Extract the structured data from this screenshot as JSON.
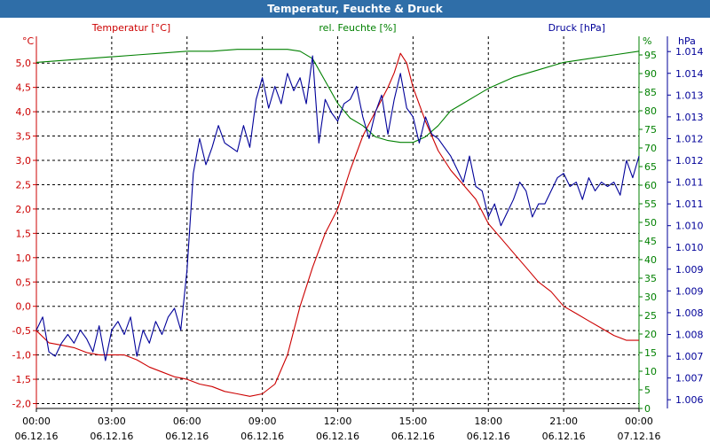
{
  "window": {
    "title": "Temperatur, Feuchte & Druck"
  },
  "colors": {
    "temperature": "#cc0000",
    "humidity": "#008000",
    "pressure": "#000099",
    "axis": "#000000",
    "grid": "#000000"
  },
  "chart_data": {
    "type": "line",
    "title": "Temperatur, Feuchte & Druck",
    "x_ticks": [
      {
        "time": "00:00",
        "date": "06.12.16"
      },
      {
        "time": "03:00",
        "date": "06.12.16"
      },
      {
        "time": "06:00",
        "date": "06.12.16"
      },
      {
        "time": "09:00",
        "date": "06.12.16"
      },
      {
        "time": "12:00",
        "date": "06.12.16"
      },
      {
        "time": "15:00",
        "date": "06.12.16"
      },
      {
        "time": "18:00",
        "date": "06.12.16"
      },
      {
        "time": "21:00",
        "date": "06.12.16"
      },
      {
        "time": "00:00",
        "date": "07.12.16"
      }
    ],
    "xlim": [
      0,
      24
    ],
    "grid": true,
    "axes": {
      "temperature": {
        "label": "Temperatur [°C]",
        "unit": "°C",
        "ylim": [
          -2.1,
          5.55
        ],
        "ticks": [
          "-2,0",
          "-1,5",
          "-1,0",
          "-0,5",
          "0,0",
          "0,5",
          "1,0",
          "1,5",
          "2,0",
          "2,5",
          "3,0",
          "3,5",
          "4,0",
          "4,5",
          "5,0"
        ],
        "tick_values": [
          -2.0,
          -1.5,
          -1.0,
          -0.5,
          0.0,
          0.5,
          1.0,
          1.5,
          2.0,
          2.5,
          3.0,
          3.5,
          4.0,
          4.5,
          5.0
        ]
      },
      "humidity": {
        "label": "rel. Feuchte [%]",
        "unit": "%",
        "ylim": [
          0,
          100
        ],
        "ticks": [
          "0",
          "5",
          "10",
          "15",
          "20",
          "25",
          "30",
          "35",
          "40",
          "45",
          "50",
          "55",
          "60",
          "65",
          "70",
          "75",
          "80",
          "85",
          "90",
          "95"
        ],
        "tick_values": [
          0,
          5,
          10,
          15,
          20,
          25,
          30,
          35,
          40,
          45,
          50,
          55,
          60,
          65,
          70,
          75,
          80,
          85,
          90,
          95
        ]
      },
      "pressure": {
        "label": "Druck [hPa]",
        "unit": "hPa",
        "ticks": [
          "1.006",
          "1.007",
          "1.007",
          "1.008",
          "1.008",
          "1.009",
          "1.009",
          "1.010",
          "1.010",
          "1.011",
          "1.011",
          "1.012",
          "1.012",
          "1.013",
          "1.013",
          "1.014",
          "1.014"
        ],
        "tick_values": [
          1006.0,
          1006.5,
          1007.0,
          1007.5,
          1008.0,
          1008.5,
          1009.0,
          1009.5,
          1010.0,
          1010.5,
          1011.0,
          1011.5,
          1012.0,
          1012.5,
          1013.0,
          1013.5,
          1014.0
        ],
        "ylim": [
          1005.8,
          1014.35
        ]
      }
    },
    "series": [
      {
        "name": "Temperatur [°C]",
        "axis": "temperature",
        "x": [
          0,
          0.5,
          1,
          1.5,
          2,
          2.5,
          3,
          3.5,
          4,
          4.5,
          5,
          5.5,
          6,
          6.5,
          7,
          7.5,
          8,
          8.5,
          9,
          9.5,
          10,
          10.5,
          11,
          11.5,
          12,
          12.5,
          13,
          13.5,
          14,
          14.25,
          14.5,
          14.75,
          15,
          15.5,
          16,
          16.5,
          17,
          17.5,
          18,
          18.5,
          19,
          19.5,
          20,
          20.5,
          21,
          21.5,
          22,
          22.5,
          23,
          23.5,
          24
        ],
        "y": [
          -0.5,
          -0.75,
          -0.8,
          -0.85,
          -0.95,
          -1.0,
          -1.0,
          -1.0,
          -1.1,
          -1.25,
          -1.35,
          -1.45,
          -1.5,
          -1.6,
          -1.65,
          -1.75,
          -1.8,
          -1.85,
          -1.8,
          -1.6,
          -1.0,
          0.0,
          0.8,
          1.5,
          2.0,
          2.8,
          3.5,
          4.0,
          4.5,
          4.8,
          5.2,
          5.0,
          4.5,
          3.8,
          3.2,
          2.8,
          2.5,
          2.2,
          1.7,
          1.4,
          1.1,
          0.8,
          0.5,
          0.3,
          0.0,
          -0.15,
          -0.3,
          -0.45,
          -0.6,
          -0.7,
          -0.7
        ]
      },
      {
        "name": "rel. Feuchte [%]",
        "axis": "humidity",
        "x": [
          0,
          1,
          2,
          3,
          4,
          5,
          6,
          7,
          8,
          9,
          10,
          10.5,
          11,
          11.5,
          12,
          12.5,
          13,
          13.5,
          14,
          14.5,
          15,
          15.5,
          16,
          16.5,
          17,
          17.5,
          18,
          19,
          20,
          21,
          22,
          23,
          24
        ],
        "y": [
          93,
          93.5,
          94,
          94.5,
          95,
          95.5,
          96,
          96,
          96.5,
          96.5,
          96.5,
          96,
          94,
          88,
          82,
          78,
          76,
          73,
          72,
          71.5,
          71.5,
          73,
          76,
          80,
          82,
          84,
          86,
          89,
          91,
          93,
          94,
          95,
          96
        ]
      },
      {
        "name": "Druck [hPa]",
        "axis": "pressure",
        "x": [
          0,
          0.25,
          0.5,
          0.75,
          1,
          1.25,
          1.5,
          1.75,
          2,
          2.25,
          2.5,
          2.75,
          3,
          3.25,
          3.5,
          3.75,
          4,
          4.25,
          4.5,
          4.75,
          5,
          5.25,
          5.5,
          5.75,
          6,
          6.25,
          6.5,
          6.75,
          7,
          7.25,
          7.5,
          7.75,
          8,
          8.25,
          8.5,
          8.75,
          9,
          9.25,
          9.5,
          9.75,
          10,
          10.25,
          10.5,
          10.75,
          11,
          11.25,
          11.5,
          11.75,
          12,
          12.25,
          12.5,
          12.75,
          13,
          13.25,
          13.5,
          13.75,
          14,
          14.25,
          14.5,
          14.75,
          15,
          15.25,
          15.5,
          15.75,
          16,
          16.25,
          16.5,
          16.75,
          17,
          17.25,
          17.5,
          17.75,
          18,
          18.25,
          18.5,
          18.75,
          19,
          19.25,
          19.5,
          19.75,
          20,
          20.25,
          20.5,
          20.75,
          21,
          21.25,
          21.5,
          21.75,
          22,
          22.25,
          22.5,
          22.75,
          23,
          23.25,
          23.5,
          23.75,
          24
        ],
        "y": [
          1007.6,
          1007.9,
          1007.1,
          1007.0,
          1007.3,
          1007.5,
          1007.3,
          1007.6,
          1007.4,
          1007.1,
          1007.7,
          1006.9,
          1007.6,
          1007.8,
          1007.5,
          1007.9,
          1007.0,
          1007.6,
          1007.3,
          1007.8,
          1007.5,
          1007.9,
          1008.1,
          1007.6,
          1009.0,
          1011.2,
          1012.0,
          1011.4,
          1011.8,
          1012.3,
          1011.9,
          1011.8,
          1011.7,
          1012.3,
          1011.8,
          1012.9,
          1013.4,
          1012.7,
          1013.2,
          1012.8,
          1013.5,
          1013.1,
          1013.4,
          1012.8,
          1013.9,
          1011.9,
          1012.9,
          1012.6,
          1012.4,
          1012.8,
          1012.9,
          1013.2,
          1012.5,
          1012.0,
          1012.6,
          1013.0,
          1012.1,
          1012.9,
          1013.5,
          1012.7,
          1012.5,
          1011.9,
          1012.5,
          1012.1,
          1012.0,
          1011.8,
          1011.6,
          1011.3,
          1011.0,
          1011.6,
          1010.9,
          1010.8,
          1010.2,
          1010.5,
          1010.0,
          1010.3,
          1010.6,
          1011.0,
          1010.8,
          1010.2,
          1010.5,
          1010.5,
          1010.8,
          1011.1,
          1011.2,
          1010.9,
          1011.0,
          1010.6,
          1011.1,
          1010.8,
          1011.0,
          1010.9,
          1011.0,
          1010.7,
          1011.5,
          1011.1,
          1011.6
        ]
      }
    ]
  }
}
